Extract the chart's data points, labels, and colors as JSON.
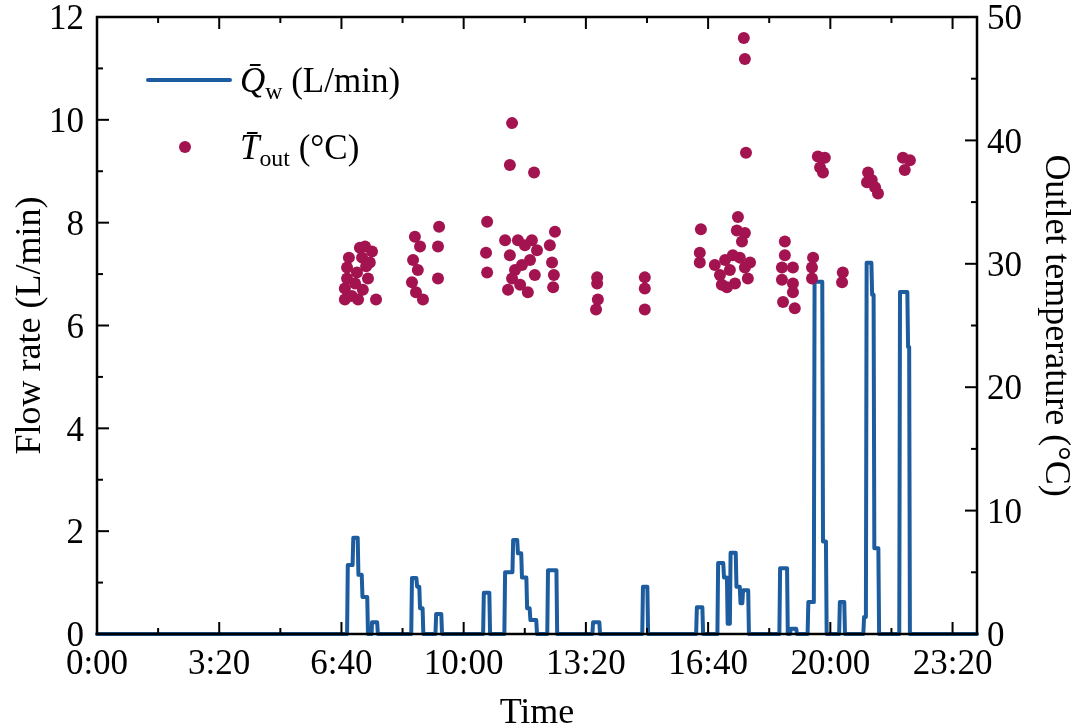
{
  "chart_data": {
    "type": "line",
    "xlabel": "Time",
    "ylabel": "Flow rate (L/min)",
    "y2label": "Outlet temperature (°C)",
    "xlim": [
      0,
      24
    ],
    "xticks": [
      {
        "value": 0,
        "label": "0:00"
      },
      {
        "value": 1.6667,
        "label": null
      },
      {
        "value": 3.3333,
        "label": "3:20"
      },
      {
        "value": 5,
        "label": null
      },
      {
        "value": 6.6667,
        "label": "6:40"
      },
      {
        "value": 8.3333,
        "label": null
      },
      {
        "value": 10,
        "label": "10:00"
      },
      {
        "value": 11.6667,
        "label": null
      },
      {
        "value": 13.3333,
        "label": "13:20"
      },
      {
        "value": 15,
        "label": null
      },
      {
        "value": 16.6667,
        "label": "16:40"
      },
      {
        "value": 18.3333,
        "label": null
      },
      {
        "value": 20,
        "label": "20:00"
      },
      {
        "value": 21.6667,
        "label": null
      },
      {
        "value": 23.3333,
        "label": "23:20"
      }
    ],
    "ylim": [
      0,
      12
    ],
    "yticks": [
      0,
      {
        "value": 1,
        "label": null
      },
      2,
      {
        "value": 3,
        "label": null
      },
      4,
      {
        "value": 5,
        "label": null
      },
      6,
      {
        "value": 7,
        "label": null
      },
      8,
      {
        "value": 9,
        "label": null
      },
      10,
      {
        "value": 11,
        "label": null
      },
      12
    ],
    "y2lim": [
      0,
      50
    ],
    "y2ticks": [
      0,
      {
        "value": 5,
        "label": null
      },
      10,
      {
        "value": 15,
        "label": null
      },
      20,
      {
        "value": 25,
        "label": null
      },
      30,
      {
        "value": 35,
        "label": null
      },
      40,
      {
        "value": 45,
        "label": null
      },
      50
    ],
    "legend": "top left",
    "series": [
      {
        "name": "Q̄$_{w}$ (L/min)",
        "color": "#1c5c9f",
        "x": [
          0,
          6.82,
          6.84,
          6.97,
          6.99,
          7.11,
          7.13,
          7.22,
          7.24,
          7.37,
          7.39,
          7.49,
          7.5,
          7.64,
          7.66,
          8.57,
          8.59,
          8.71,
          8.73,
          8.79,
          8.81,
          8.88,
          8.9,
          9.23,
          9.25,
          9.39,
          9.41,
          10.53,
          10.55,
          10.7,
          10.72,
          11.11,
          11.13,
          11.33,
          11.35,
          11.46,
          11.48,
          11.57,
          11.59,
          11.71,
          11.73,
          11.8,
          11.82,
          11.98,
          12.0,
          12.28,
          12.3,
          12.53,
          12.55,
          13.51,
          13.53,
          13.7,
          13.72,
          14.87,
          14.89,
          15.01,
          15.03,
          16.34,
          16.36,
          16.51,
          16.53,
          16.92,
          16.94,
          17.08,
          17.1,
          17.18,
          17.2,
          17.26,
          17.28,
          17.42,
          17.44,
          17.53,
          17.55,
          17.6,
          17.62,
          17.76,
          17.78,
          18.61,
          18.63,
          18.82,
          18.84,
          18.9,
          18.92,
          19.07,
          19.09,
          19.38,
          19.4,
          19.55,
          19.57,
          19.78,
          19.8,
          19.88,
          19.9,
          20.24,
          20.26,
          20.38,
          20.4,
          20.9,
          20.92,
          20.97,
          20.99,
          21.12,
          21.14,
          21.18,
          21.2,
          21.31,
          21.33,
          21.88,
          21.9,
          22.1,
          22.12,
          22.15,
          22.17,
          24
        ],
        "values": [
          0,
          0,
          1.34,
          1.34,
          1.87,
          1.87,
          1.15,
          1.15,
          0.72,
          0.72,
          0,
          0,
          0.23,
          0.23,
          0,
          0,
          1.09,
          1.09,
          0.92,
          0.92,
          0.5,
          0.5,
          0,
          0,
          0.39,
          0.39,
          0,
          0,
          0.8,
          0.8,
          0,
          0,
          1.2,
          1.2,
          1.83,
          1.83,
          1.57,
          1.57,
          1.1,
          1.1,
          0.5,
          0.5,
          0.27,
          0.27,
          0,
          0,
          1.24,
          1.24,
          0,
          0,
          0.23,
          0.23,
          0,
          0,
          0.92,
          0.92,
          0,
          0,
          0.52,
          0.52,
          0,
          0,
          1.38,
          1.38,
          1.1,
          1.1,
          0.2,
          0.2,
          1.58,
          1.58,
          0.92,
          0.92,
          0.6,
          0.6,
          0.85,
          0.85,
          0,
          0,
          1.28,
          1.28,
          0,
          0,
          0.1,
          0.1,
          0,
          0,
          0.62,
          0.62,
          6.85,
          6.85,
          1.8,
          1.8,
          0,
          0,
          0.62,
          0.62,
          0,
          0,
          0.33,
          0.33,
          7.22,
          7.22,
          6.6,
          6.6,
          1.67,
          1.67,
          0,
          0,
          6.65,
          6.65,
          5.58,
          5.58,
          0,
          0
        ]
      },
      {
        "name": "T̄$_{out}$ (°C)",
        "type": "scatter",
        "axis": "y2",
        "marker": "circle",
        "color": "#a3134f",
        "x": [
          6.76,
          6.76,
          6.82,
          6.82,
          6.87,
          6.95,
          7.04,
          7.09,
          7.17,
          7.23,
          7.31,
          7.34,
          7.39,
          7.44,
          7.5,
          7.61,
          7.12,
          7.25,
          8.62,
          8.67,
          8.81,
          8.75,
          8.59,
          8.7,
          8.89,
          9.33,
          9.3,
          9.3,
          10.64,
          10.61,
          10.64,
          11.32,
          11.26,
          11.92,
          11.13,
          11.26,
          11.4,
          11.54,
          11.67,
          11.81,
          11.94,
          11.21,
          11.75,
          11.48,
          11.86,
          12.0,
          11.59,
          11.32,
          12.49,
          12.35,
          12.41,
          12.46,
          12.44,
          13.64,
          13.64,
          13.66,
          13.61,
          14.94,
          14.94,
          14.94,
          17.64,
          17.67,
          17.7,
          16.47,
          16.44,
          16.44,
          17.48,
          17.45,
          17.67,
          17.59,
          16.85,
          16.99,
          17.13,
          17.26,
          17.4,
          17.53,
          17.67,
          17.81,
          17.04,
          17.34,
          17.75,
          17.18,
          18.76,
          18.76,
          18.68,
          18.98,
          18.68,
          18.98,
          18.98,
          18.71,
          19.03,
          19.53,
          19.5,
          19.5,
          20.34,
          20.32,
          19.66,
          19.85,
          19.72,
          19.8,
          21.03,
          21.13,
          21.22,
          21.3,
          21.0,
          21.98,
          22.17,
          22.03
        ],
        "values": [
          27.1,
          28.0,
          28.8,
          29.7,
          30.5,
          27.4,
          28.4,
          29.3,
          31.3,
          30.5,
          31.4,
          29.8,
          28.8,
          30.1,
          31.0,
          27.1,
          27.1,
          27.9,
          30.3,
          32.2,
          31.4,
          29.5,
          28.5,
          27.7,
          27.1,
          33.0,
          31.4,
          28.8,
          33.4,
          30.9,
          29.3,
          41.4,
          38.0,
          37.4,
          31.9,
          30.7,
          29.5,
          28.3,
          31.5,
          30.3,
          29.1,
          27.9,
          27.7,
          31.9,
          31.9,
          31.1,
          29.9,
          28.8,
          32.6,
          31.5,
          30.1,
          29.1,
          28.1,
          28.9,
          28.4,
          27.1,
          26.3,
          28.9,
          28.0,
          26.3,
          48.3,
          46.6,
          39.0,
          32.8,
          30.9,
          30.1,
          33.8,
          32.7,
          32.5,
          31.8,
          29.9,
          29.1,
          30.3,
          29.5,
          28.4,
          30.5,
          29.7,
          30.1,
          28.3,
          30.7,
          28.8,
          28.1,
          31.8,
          30.7,
          29.7,
          29.7,
          28.7,
          28.4,
          27.7,
          26.9,
          26.4,
          30.5,
          29.7,
          28.8,
          29.3,
          28.5,
          38.7,
          38.6,
          37.8,
          37.4,
          37.4,
          36.8,
          36.2,
          35.7,
          36.6,
          38.6,
          38.4,
          37.6
        ]
      }
    ]
  }
}
